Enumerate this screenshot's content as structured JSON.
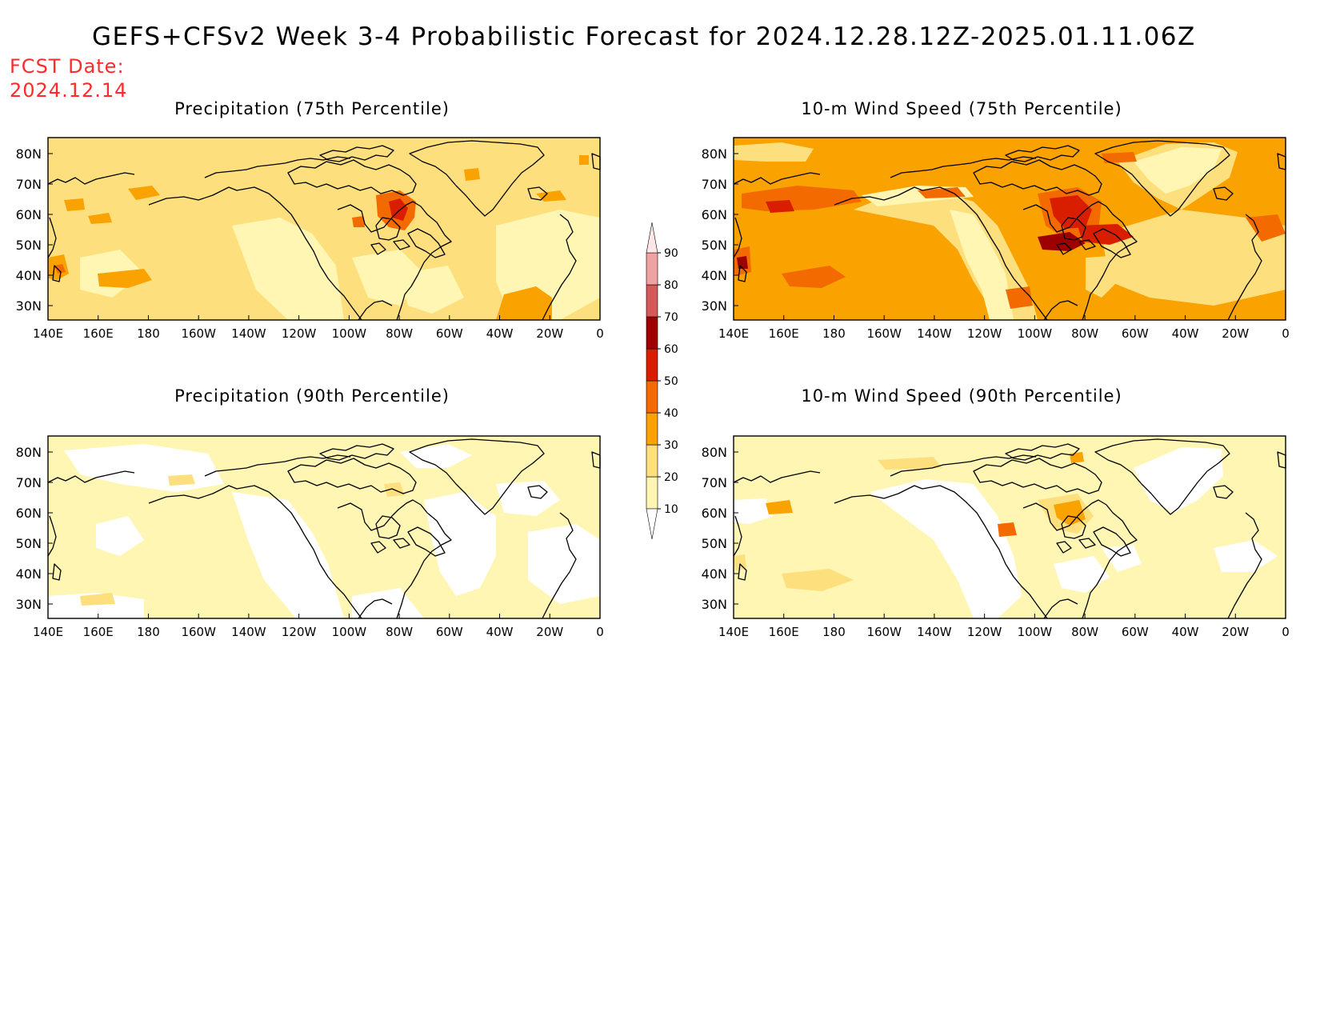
{
  "title": "GEFS+CFSv2 Week 3-4 Probabilistic Forecast for 2024.12.28.12Z-2025.01.11.06Z",
  "forecast_date_label": "FCST Date:",
  "forecast_date_value": "2024.12.14",
  "colors": {
    "10-20": "#fef6b2",
    "20-30": "#fde07d",
    "30-40": "#f9a200",
    "40-50": "#f26a00",
    "50-60": "#d91e00",
    "60-70": "#9e0000",
    "70-80": "#d45a5a",
    "80-90": "#f0a1a4",
    "90+": "#fde6e6",
    "coast": "#000000"
  },
  "colorbar": {
    "levels": [
      "10",
      "20",
      "30",
      "40",
      "50",
      "60",
      "70",
      "80",
      "90"
    ]
  },
  "lat_ticks": [
    "80N",
    "70N",
    "60N",
    "50N",
    "40N",
    "30N"
  ],
  "lon_ticks": [
    "140E",
    "160E",
    "180",
    "160W",
    "140W",
    "120W",
    "100W",
    "80W",
    "60W",
    "40W",
    "20W",
    "0"
  ],
  "panels": [
    {
      "title": "Precipitation (75th Percentile)",
      "base": "20-30"
    },
    {
      "title": "10-m Wind Speed (75th Percentile)",
      "base": "30-40"
    },
    {
      "title": "Precipitation (90th Percentile)",
      "base": "10-20"
    },
    {
      "title": "10-m Wind Speed (90th Percentile)",
      "base": "10-20"
    }
  ]
}
